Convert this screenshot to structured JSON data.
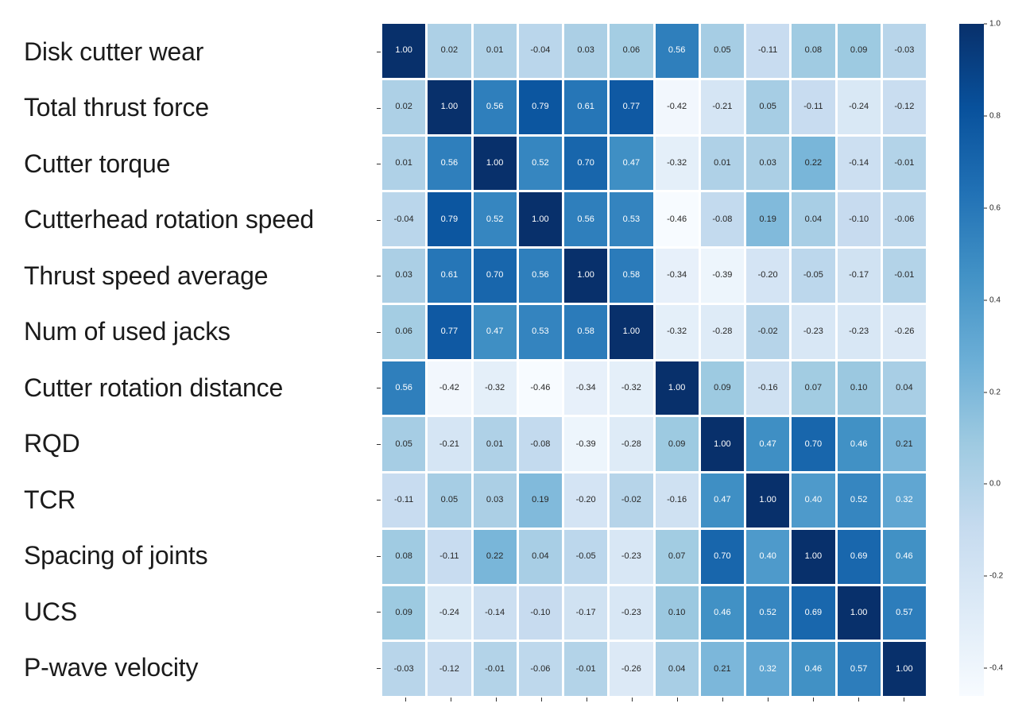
{
  "chart_data": {
    "type": "heatmap",
    "title": "",
    "xlabel": "",
    "ylabel": "",
    "row_labels": [
      "Disk cutter wear",
      "Total thrust force",
      "Cutter torque",
      "Cutterhead rotation speed",
      "Thrust speed average",
      "Num of used jacks",
      "Cutter rotation distance",
      "RQD",
      "TCR",
      "Spacing of joints",
      "UCS",
      "P-wave velocity"
    ],
    "values": [
      [
        1.0,
        0.02,
        0.01,
        -0.04,
        0.03,
        0.06,
        0.56,
        0.05,
        -0.11,
        0.08,
        0.09,
        -0.03
      ],
      [
        0.02,
        1.0,
        0.56,
        0.79,
        0.61,
        0.77,
        -0.42,
        -0.21,
        0.05,
        -0.11,
        -0.24,
        -0.12
      ],
      [
        0.01,
        0.56,
        1.0,
        0.52,
        0.7,
        0.47,
        -0.32,
        0.01,
        0.03,
        0.22,
        -0.14,
        -0.01
      ],
      [
        -0.04,
        0.79,
        0.52,
        1.0,
        0.56,
        0.53,
        -0.46,
        -0.08,
        0.19,
        0.04,
        -0.1,
        -0.06
      ],
      [
        0.03,
        0.61,
        0.7,
        0.56,
        1.0,
        0.58,
        -0.34,
        -0.39,
        -0.2,
        -0.05,
        -0.17,
        -0.01
      ],
      [
        0.06,
        0.77,
        0.47,
        0.53,
        0.58,
        1.0,
        -0.32,
        -0.28,
        -0.02,
        -0.23,
        -0.23,
        -0.26
      ],
      [
        0.56,
        -0.42,
        -0.32,
        -0.46,
        -0.34,
        -0.32,
        1.0,
        0.09,
        -0.16,
        0.07,
        0.1,
        0.04
      ],
      [
        0.05,
        -0.21,
        0.01,
        -0.08,
        -0.39,
        -0.28,
        0.09,
        1.0,
        0.47,
        0.7,
        0.46,
        0.21
      ],
      [
        -0.11,
        0.05,
        0.03,
        0.19,
        -0.2,
        -0.02,
        -0.16,
        0.47,
        1.0,
        0.4,
        0.52,
        0.32
      ],
      [
        0.08,
        -0.11,
        0.22,
        0.04,
        -0.05,
        -0.23,
        0.07,
        0.7,
        0.4,
        1.0,
        0.69,
        0.46
      ],
      [
        0.09,
        -0.24,
        -0.14,
        -0.1,
        -0.17,
        -0.23,
        0.1,
        0.46,
        0.52,
        0.69,
        1.0,
        0.57
      ],
      [
        -0.03,
        -0.12,
        -0.01,
        -0.06,
        -0.01,
        -0.26,
        0.04,
        0.21,
        0.32,
        0.46,
        0.57,
        1.0
      ]
    ],
    "value_decimals": 2,
    "colormap": "Blues",
    "vmin": -0.46,
    "vmax": 1.0,
    "colormap_stops": [
      "#f7fbff",
      "#deebf7",
      "#c6dbef",
      "#9ecae1",
      "#6baed6",
      "#4292c6",
      "#2171b5",
      "#08519c",
      "#08306b"
    ],
    "colorbar_ticks": [
      "1.0",
      "0.8",
      "0.6",
      "0.4",
      "0.2",
      "0.0",
      "-0.2",
      "-0.4"
    ],
    "colorbar_tick_values": [
      1.0,
      0.8,
      0.6,
      0.4,
      0.2,
      0.0,
      -0.2,
      -0.4
    ],
    "grid_line_color": "#ffffff",
    "annotation_colors": {
      "dark": "#262626",
      "light": "#ffffff"
    },
    "legend_position": "right-colorbar",
    "grid": false
  }
}
